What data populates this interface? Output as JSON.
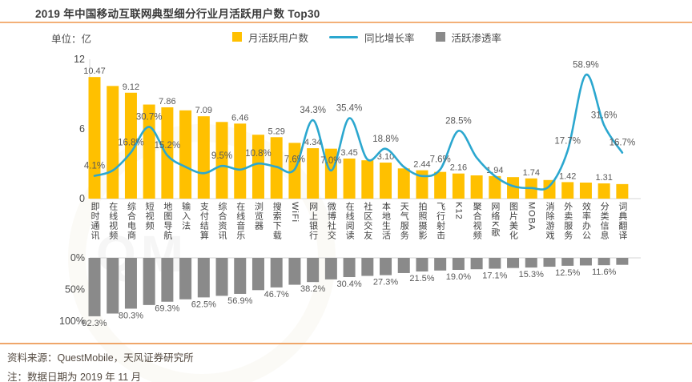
{
  "header": {
    "title": "2019 年中国移动互联网典型细分行业月活跃用户数 Top30"
  },
  "legend": {
    "unit_label": "单位：亿",
    "items": [
      {
        "label": "月活跃用户数",
        "swatch": "square",
        "color": "#FFC000"
      },
      {
        "label": "同比增长率",
        "swatch": "line",
        "color": "#2BA7CF"
      },
      {
        "label": "活跃渗透率",
        "swatch": "square",
        "color": "#8A8A8A"
      }
    ]
  },
  "chart_data": {
    "type": "bar",
    "subtype": "combo: bar + smoothed line (top panel) and inverted bar (bottom panel), shared category axis",
    "title": "2019 年中国移动互联网典型细分行业月活跃用户数 Top30",
    "unit": "亿",
    "grid": false,
    "categories": [
      "即时通讯",
      "在线视频",
      "综合电商",
      "短视频",
      "地图导航",
      "输入法",
      "支付结算",
      "综合资讯",
      "在线音乐",
      "浏览器",
      "搜索下载",
      "WiFi",
      "网上银行",
      "微博社交",
      "在线阅读",
      "社区交友",
      "本地生活",
      "天气服务",
      "拍照摄影",
      "飞行射击",
      "K12",
      "聚合视频",
      "网络K歌",
      "图片美化",
      "MOBA",
      "消除游戏",
      "外卖服务",
      "效率办公",
      "分类信息",
      "词典翻译"
    ],
    "series": [
      {
        "name": "月活跃用户数",
        "type": "bar",
        "unit": "亿",
        "color": "#FFC000",
        "axis": {
          "ticks": [
            0,
            6,
            12
          ],
          "ylim": [
            0,
            12
          ]
        },
        "values": [
          10.47,
          9.7,
          9.12,
          8.1,
          7.86,
          7.6,
          7.09,
          6.6,
          6.46,
          5.5,
          5.29,
          4.8,
          4.34,
          4.3,
          3.45,
          3.3,
          3.1,
          2.6,
          2.44,
          2.3,
          2.16,
          2.0,
          1.94,
          1.85,
          1.74,
          1.6,
          1.42,
          1.38,
          1.31,
          1.25
        ],
        "point_labels": [
          "10.47",
          null,
          "9.12",
          null,
          "7.86",
          null,
          "7.09",
          null,
          "6.46",
          null,
          "5.29",
          null,
          "4.34",
          null,
          "3.45",
          null,
          "3.10",
          null,
          "2.44",
          null,
          "2.16",
          null,
          "1.94",
          null,
          "1.74",
          null,
          "1.42",
          null,
          "1.31",
          null
        ]
      },
      {
        "name": "同比增长率",
        "type": "line",
        "unit": "%",
        "color": "#2BA7CF",
        "values": [
          4.1,
          7,
          16.8,
          30.7,
          15.2,
          9,
          5.5,
          9.5,
          7.5,
          10.8,
          9,
          7.6,
          34.3,
          7,
          35.4,
          13,
          18.8,
          9,
          4,
          7.6,
          28.5,
          14,
          4,
          -1.5,
          -2.5,
          -1.5,
          17.7,
          58.9,
          31.6,
          16.7
        ],
        "point_labels": [
          "4.1%",
          null,
          "16.8%",
          "30.7%",
          "15.2%",
          null,
          null,
          "9.5%",
          null,
          "10.8%",
          null,
          "7.6%",
          "34.3%",
          "7.0%",
          "35.4%",
          null,
          "18.8%",
          null,
          null,
          "7.6%",
          "28.5%",
          null,
          null,
          null,
          null,
          null,
          "17.7%",
          "58.9%",
          "31.6%",
          "16.7%"
        ]
      },
      {
        "name": "活跃渗透率",
        "type": "bar-inverted",
        "unit": "%",
        "color": "#8A8A8A",
        "axis": {
          "ticks_labels": [
            "0%",
            "50%",
            "100%"
          ],
          "ticks": [
            0,
            50,
            100
          ],
          "inverted": true
        },
        "values": [
          92.3,
          88,
          80.3,
          74.5,
          69.3,
          65.5,
          62.5,
          60,
          56.9,
          51,
          46.7,
          42.5,
          38.2,
          34,
          30.4,
          28.5,
          27.3,
          24,
          21.5,
          20,
          19,
          18,
          17.1,
          16,
          15.3,
          14,
          12.5,
          12,
          11.6,
          11
        ],
        "point_labels": [
          "92.3%",
          null,
          "80.3%",
          null,
          "69.3%",
          null,
          "62.5%",
          null,
          "56.9%",
          null,
          "46.7%",
          null,
          "38.2%",
          null,
          "30.4%",
          null,
          "27.3%",
          null,
          "21.5%",
          null,
          "19.0%",
          null,
          "17.1%",
          null,
          "15.3%",
          null,
          "12.5%",
          null,
          "11.6%",
          null
        ]
      }
    ],
    "colors": {
      "bar": "#FFC000",
      "line": "#2BA7CF",
      "penetration_bar": "#8A8A8A",
      "label_text": "#595959",
      "axis_text": "#4a4a4a",
      "rule_orange": "#f3b078"
    }
  },
  "footer": {
    "source": "资料来源：QuestMobile，天风证券研究所",
    "note": "注：数据日期为 2019 年 11 月"
  }
}
